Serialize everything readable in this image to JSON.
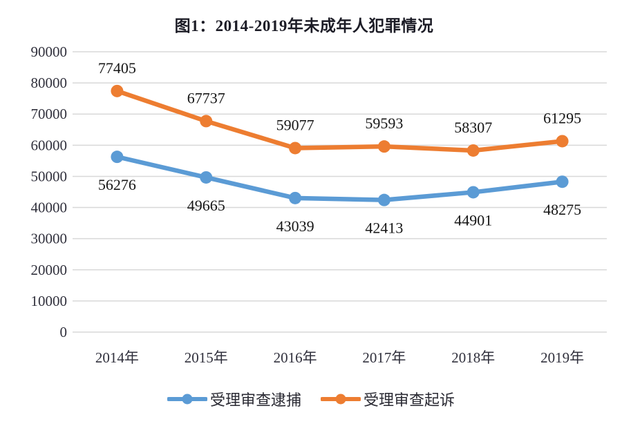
{
  "title": "图1：2014-2019年未成年人犯罪情况",
  "chart_data": {
    "type": "line",
    "title": "图1：2014-2019年未成年人犯罪情况",
    "categories": [
      "2014年",
      "2015年",
      "2016年",
      "2017年",
      "2018年",
      "2019年"
    ],
    "series": [
      {
        "name": "受理审查逮捕",
        "color": "#5B9BD5",
        "values": [
          56276,
          49665,
          43039,
          42413,
          44901,
          48275
        ],
        "label_position": "below"
      },
      {
        "name": "受理审查起诉",
        "color": "#ED7D31",
        "values": [
          77405,
          67737,
          59077,
          59593,
          58307,
          61295
        ],
        "label_position": "above"
      }
    ],
    "yticks": [
      0,
      10000,
      20000,
      30000,
      40000,
      50000,
      60000,
      70000,
      80000,
      90000
    ],
    "ylim": [
      0,
      90000
    ],
    "xlabel": "",
    "ylabel": "",
    "grid": "horizontal",
    "gridline_color": "#D8D8D8",
    "legend_position": "bottom",
    "data_labels_shown": true
  }
}
